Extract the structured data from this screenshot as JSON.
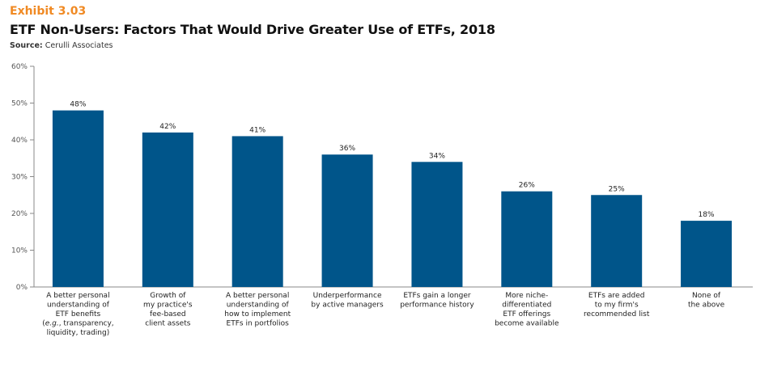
{
  "header": {
    "exhibit": "Exhibit 3.03",
    "title": "ETF Non-Users: Factors That Would Drive Greater Use of ETFs, 2018",
    "source_label": "Source:",
    "source_text": "Cerulli Associates"
  },
  "colors": {
    "bar": "#00558a",
    "exhibit": "#f08a24",
    "axis": "#888888"
  },
  "chart_data": {
    "type": "bar",
    "title": "ETF Non-Users: Factors That Would Drive Greater Use of ETFs, 2018",
    "xlabel": "",
    "ylabel": "",
    "ylim": [
      0,
      60
    ],
    "yticks": [
      0,
      10,
      20,
      30,
      40,
      50,
      60
    ],
    "ytick_labels": [
      "0%",
      "10%",
      "20%",
      "30%",
      "40%",
      "50%",
      "60%"
    ],
    "grid": false,
    "legend": "none",
    "categories": [
      [
        "A better personal",
        "understanding of",
        "ETF benefits",
        "(e.g., transparency,",
        "liquidity, trading)"
      ],
      [
        "Growth of",
        "my practice's",
        "fee-based",
        "client assets"
      ],
      [
        "A better personal",
        "understanding of",
        "how to implement",
        "ETFs in portfolios"
      ],
      [
        "Underperformance",
        "by active managers"
      ],
      [
        "ETFs gain a longer",
        "performance history"
      ],
      [
        "More niche-",
        "differentiated",
        "ETF offerings",
        "become available"
      ],
      [
        "ETFs are added",
        "to my firm's",
        "recommended list"
      ],
      [
        "None of",
        "the above"
      ]
    ],
    "values": [
      48,
      42,
      41,
      36,
      34,
      26,
      25,
      18
    ],
    "data_labels": [
      "48%",
      "42%",
      "41%",
      "36%",
      "34%",
      "26%",
      "25%",
      "18%"
    ]
  }
}
